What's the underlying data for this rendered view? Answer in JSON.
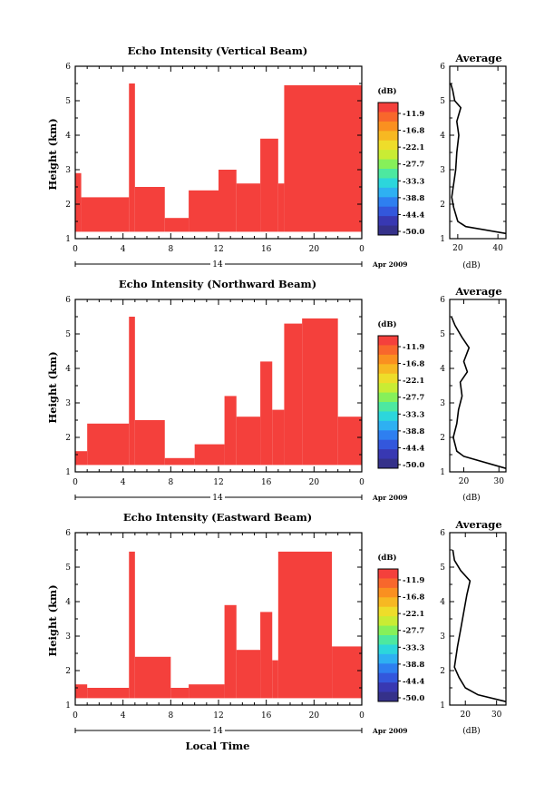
{
  "chart_data": [
    {
      "type": "heatmap",
      "panel": "vertical",
      "title": "Echo Intensity (Vertical Beam)",
      "xlabel": "",
      "ylabel": "Height (km)",
      "xlim": [
        0,
        24
      ],
      "ylim": [
        1,
        6
      ],
      "xticks": [
        "0",
        "4",
        "8",
        "12",
        "16",
        "20",
        "0"
      ],
      "yticks": [
        "1",
        "2",
        "3",
        "4",
        "5",
        "6"
      ],
      "day_label": "14",
      "date_label": "Apr 2009",
      "color": "#f4403c",
      "echo_region": [
        {
          "t": [
            0.0,
            0.5
          ],
          "top": 2.9
        },
        {
          "t": [
            0.5,
            4.5
          ],
          "top": 2.2
        },
        {
          "t": [
            4.5,
            5.0
          ],
          "top": 5.5
        },
        {
          "t": [
            5.0,
            7.5
          ],
          "top": 2.5
        },
        {
          "t": [
            7.5,
            9.5
          ],
          "top": 1.6
        },
        {
          "t": [
            9.5,
            12.0
          ],
          "top": 2.4
        },
        {
          "t": [
            12.0,
            13.5
          ],
          "top": 3.0
        },
        {
          "t": [
            13.5,
            15.5
          ],
          "top": 2.6
        },
        {
          "t": [
            15.5,
            17.0
          ],
          "top": 3.9
        },
        {
          "t": [
            17.0,
            17.5
          ],
          "top": 2.6
        },
        {
          "t": [
            17.5,
            24.0
          ],
          "top": 5.45
        }
      ],
      "colorbar": {
        "label": "(dB)",
        "ticks": [
          "-11.9",
          "-16.8",
          "-22.1",
          "-27.7",
          "-33.3",
          "-38.8",
          "-44.4",
          "-50.0"
        ]
      },
      "profile": {
        "title": "Average",
        "xlabel": "(dB)",
        "xlim": [
          16,
          44
        ],
        "xticks": [
          "20",
          "40"
        ],
        "points": [
          [
            16.5,
            5.5
          ],
          [
            17.5,
            5.3
          ],
          [
            18.5,
            5.0
          ],
          [
            21.5,
            4.8
          ],
          [
            19.5,
            4.4
          ],
          [
            20.5,
            4.0
          ],
          [
            19.5,
            3.5
          ],
          [
            19.0,
            3.0
          ],
          [
            18.0,
            2.6
          ],
          [
            17.0,
            2.2
          ],
          [
            18.0,
            1.9
          ],
          [
            20.0,
            1.5
          ],
          [
            24.0,
            1.35
          ],
          [
            44.0,
            1.15
          ]
        ]
      }
    },
    {
      "type": "heatmap",
      "panel": "northward",
      "title": "Echo Intensity (Northward Beam)",
      "xlabel": "",
      "ylabel": "Height (km)",
      "xlim": [
        0,
        24
      ],
      "ylim": [
        1,
        6
      ],
      "xticks": [
        "0",
        "4",
        "8",
        "12",
        "16",
        "20",
        "0"
      ],
      "yticks": [
        "1",
        "2",
        "3",
        "4",
        "5",
        "6"
      ],
      "day_label": "14",
      "date_label": "Apr 2009",
      "color": "#f4403c",
      "echo_region": [
        {
          "t": [
            0.0,
            1.0
          ],
          "top": 1.6
        },
        {
          "t": [
            1.0,
            4.5
          ],
          "top": 2.4
        },
        {
          "t": [
            4.5,
            5.0
          ],
          "top": 5.5
        },
        {
          "t": [
            5.0,
            7.5
          ],
          "top": 2.5
        },
        {
          "t": [
            7.5,
            10.0
          ],
          "top": 1.4
        },
        {
          "t": [
            10.0,
            12.5
          ],
          "top": 1.8
        },
        {
          "t": [
            12.5,
            13.5
          ],
          "top": 3.2
        },
        {
          "t": [
            13.5,
            15.5
          ],
          "top": 2.6
        },
        {
          "t": [
            15.5,
            16.5
          ],
          "top": 4.2
        },
        {
          "t": [
            16.5,
            17.5
          ],
          "top": 2.8
        },
        {
          "t": [
            17.5,
            19.0
          ],
          "top": 5.3
        },
        {
          "t": [
            19.0,
            22.0
          ],
          "top": 5.45
        },
        {
          "t": [
            22.0,
            24.0
          ],
          "top": 2.6
        }
      ],
      "colorbar": {
        "label": "(dB)",
        "ticks": [
          "-11.9",
          "-16.8",
          "-22.1",
          "-27.7",
          "-33.3",
          "-38.8",
          "-44.4",
          "-50.0"
        ]
      },
      "profile": {
        "title": "Average",
        "xlabel": "(dB)",
        "xlim": [
          16,
          32
        ],
        "xticks": [
          "20",
          "30"
        ],
        "points": [
          [
            16.5,
            5.5
          ],
          [
            17.5,
            5.25
          ],
          [
            19.5,
            4.9
          ],
          [
            21.5,
            4.6
          ],
          [
            20.0,
            4.2
          ],
          [
            21.0,
            3.9
          ],
          [
            19.0,
            3.6
          ],
          [
            19.5,
            3.2
          ],
          [
            18.5,
            2.8
          ],
          [
            18.0,
            2.4
          ],
          [
            17.0,
            2.0
          ],
          [
            18.0,
            1.6
          ],
          [
            20.0,
            1.45
          ],
          [
            32.0,
            1.1
          ]
        ]
      }
    },
    {
      "type": "heatmap",
      "panel": "eastward",
      "title": "Echo Intensity (Eastward Beam)",
      "xlabel": "Local Time",
      "ylabel": "Height (km)",
      "xlim": [
        0,
        24
      ],
      "ylim": [
        1,
        6
      ],
      "xticks": [
        "0",
        "4",
        "8",
        "12",
        "16",
        "20",
        "0"
      ],
      "yticks": [
        "1",
        "2",
        "3",
        "4",
        "5",
        "6"
      ],
      "day_label": "14",
      "date_label": "Apr 2009",
      "color": "#f4403c",
      "echo_region": [
        {
          "t": [
            0.0,
            1.0
          ],
          "top": 1.6
        },
        {
          "t": [
            1.0,
            4.5
          ],
          "top": 1.5
        },
        {
          "t": [
            4.5,
            5.0
          ],
          "top": 5.45
        },
        {
          "t": [
            5.0,
            8.0
          ],
          "top": 2.4
        },
        {
          "t": [
            8.0,
            9.5
          ],
          "top": 1.5
        },
        {
          "t": [
            9.5,
            12.5
          ],
          "top": 1.6
        },
        {
          "t": [
            12.5,
            13.5
          ],
          "top": 3.9
        },
        {
          "t": [
            13.5,
            15.5
          ],
          "top": 2.6
        },
        {
          "t": [
            15.5,
            16.5
          ],
          "top": 3.7
        },
        {
          "t": [
            16.5,
            17.0
          ],
          "top": 2.3
        },
        {
          "t": [
            17.0,
            21.5
          ],
          "top": 5.45
        },
        {
          "t": [
            21.5,
            24.0
          ],
          "top": 2.7
        }
      ],
      "colorbar": {
        "label": "(dB)",
        "ticks": [
          "-11.9",
          "-16.8",
          "-22.1",
          "-27.7",
          "-33.3",
          "-38.8",
          "-44.4",
          "-50.0"
        ]
      },
      "profile": {
        "title": "Average",
        "xlabel": "(dB)",
        "xlim": [
          15,
          33
        ],
        "xticks": [
          "20",
          "30"
        ],
        "points": [
          [
            16.0,
            5.5
          ],
          [
            16.5,
            5.2
          ],
          [
            18.5,
            4.9
          ],
          [
            21.5,
            4.6
          ],
          [
            20.5,
            4.2
          ],
          [
            19.5,
            3.7
          ],
          [
            18.5,
            3.2
          ],
          [
            17.5,
            2.7
          ],
          [
            16.5,
            2.1
          ],
          [
            18.0,
            1.8
          ],
          [
            20.0,
            1.5
          ],
          [
            24.0,
            1.3
          ],
          [
            33.0,
            1.1
          ]
        ]
      }
    }
  ],
  "colors": {
    "echo": "#f4403c",
    "colorbar": [
      "#f4403c",
      "#f8672c",
      "#fa9020",
      "#f7b822",
      "#eedd2a",
      "#c9ec34",
      "#86f05a",
      "#4de8a0",
      "#2cd6dc",
      "#2eb0f2",
      "#2e7ff0",
      "#3357dc",
      "#3838b2",
      "#35318a"
    ]
  }
}
